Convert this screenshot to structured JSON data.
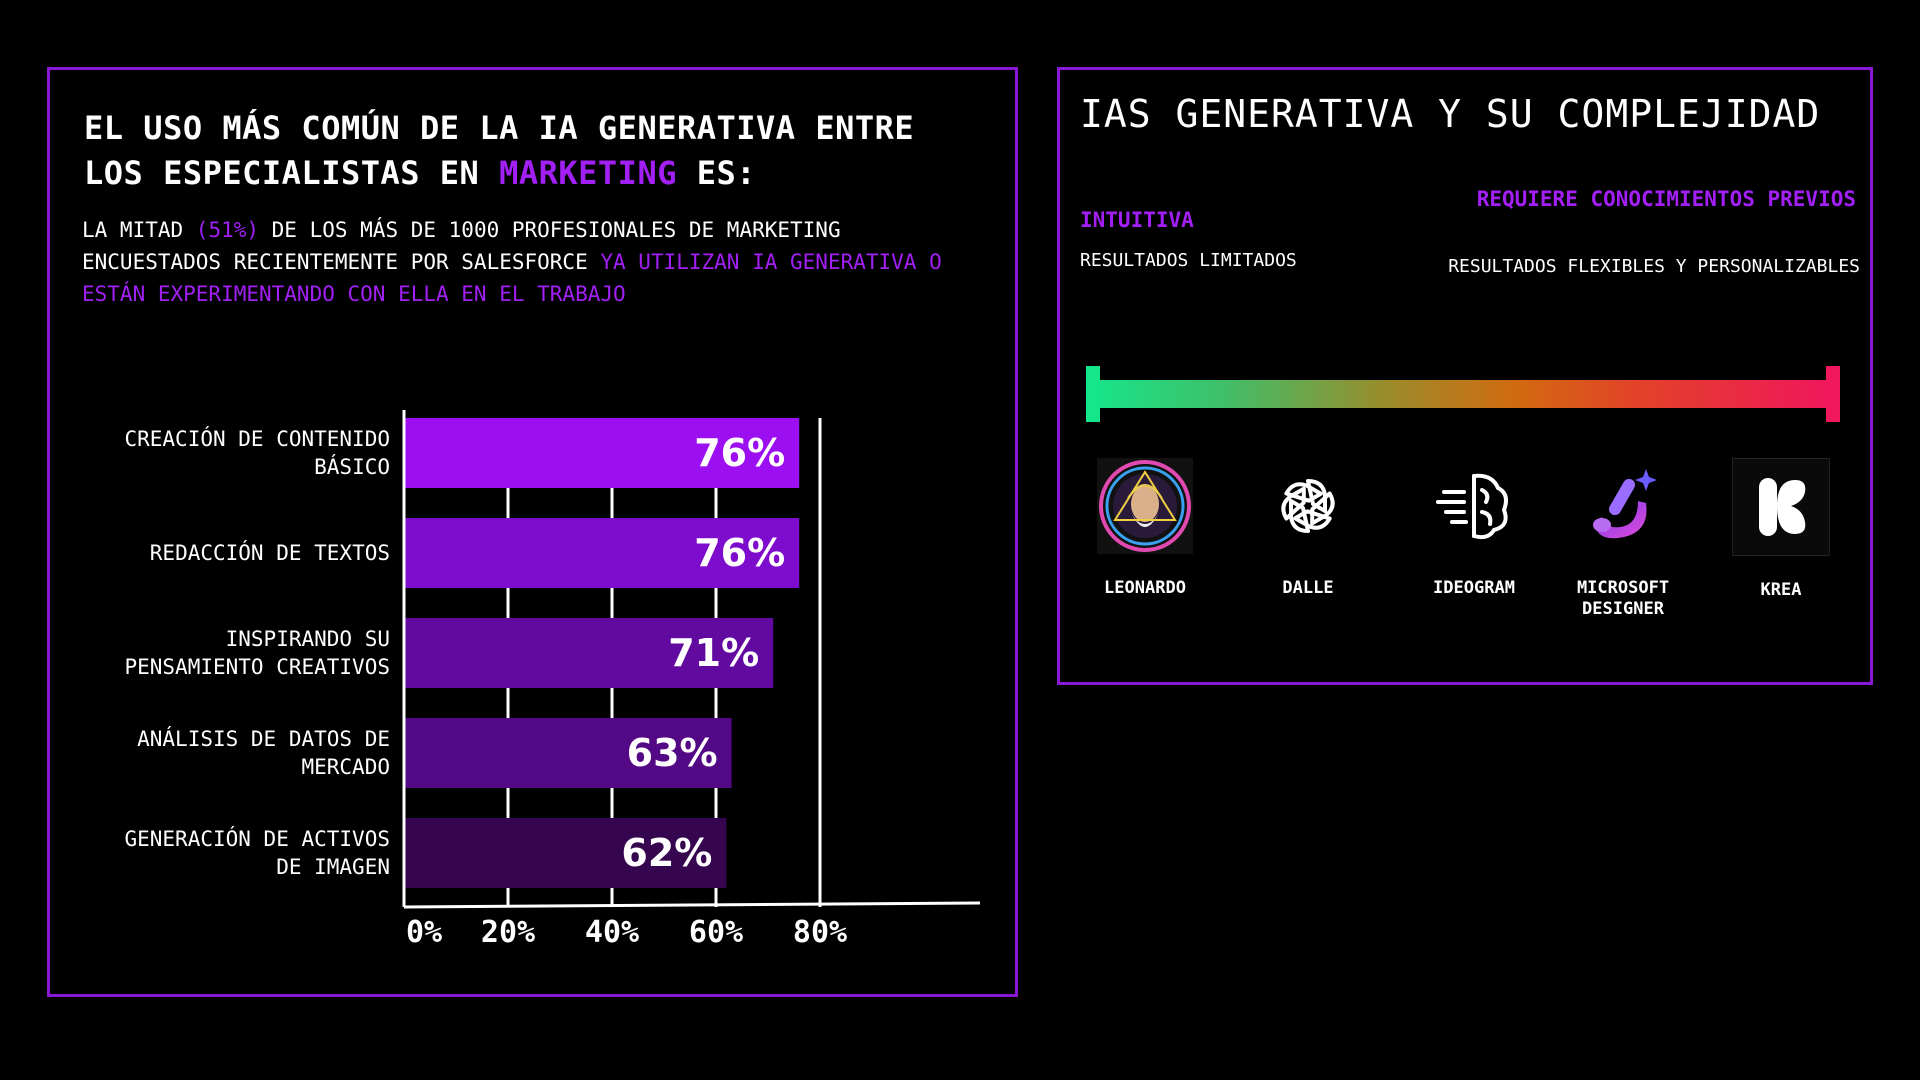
{
  "left": {
    "title_part1": "EL USO MÁS COMÚN DE LA IA GENERATIVA ENTRE LOS ESPECIALISTAS EN ",
    "title_accent": "MARKETING",
    "title_part2": " ES:",
    "desc_part1": "LA MITAD ",
    "desc_accent1": "(51%)",
    "desc_part2": " DE LOS MÁS DE 1000 PROFESIONALES DE MARKETING ENCUESTADOS RECIENTEMENTE POR SALESFORCE ",
    "desc_accent2": "YA UTILIZAN IA GENERATIVA O ESTÁN EXPERIMENTANDO CON ELLA EN EL TRABAJO"
  },
  "chart_data": {
    "type": "bar",
    "orientation": "horizontal",
    "categories": [
      "CREACIÓN DE CONTENIDO BÁSICO",
      "REDACCIÓN DE TEXTOS",
      "INSPIRANDO SU PENSAMIENTO CREATIVOS",
      "ANÁLISIS DE DATOS DE MERCADO",
      "GENERACIÓN DE ACTIVOS DE IMAGEN"
    ],
    "values": [
      76,
      76,
      71,
      63,
      62
    ],
    "value_labels": [
      "76%",
      "76%",
      "71%",
      "63%",
      "62%"
    ],
    "x_ticks": [
      "0%",
      "20%",
      "40%",
      "60%",
      "80%"
    ],
    "xlim": [
      0,
      80
    ],
    "bar_colors": [
      "#9b0ff0",
      "#7e0ccd",
      "#620aa0",
      "#530885",
      "#35054f"
    ],
    "grid": true
  },
  "right": {
    "title": "IAS GENERATIVA Y SU COMPLEJIDAD",
    "left_head": "INTUITIVA",
    "left_sub": "RESULTADOS LIMITADOS",
    "right_head": "REQUIERE CONOCIMIENTOS PREVIOS",
    "right_sub": "RESULTADOS FLEXIBLES Y PERSONALIZABLES",
    "gradient_start": "#16e68a",
    "gradient_end": "#f0175c",
    "tools": [
      {
        "label": "LEONARDO",
        "icon": "leonardo-logo-icon"
      },
      {
        "label": "DALLE",
        "icon": "openai-logo-icon"
      },
      {
        "label": "IDEOGRAM",
        "icon": "ideogram-brain-icon"
      },
      {
        "label": "MICROSOFT DESIGNER",
        "icon": "designer-brush-icon"
      },
      {
        "label": "KREA",
        "icon": "krea-logo-icon"
      }
    ]
  }
}
